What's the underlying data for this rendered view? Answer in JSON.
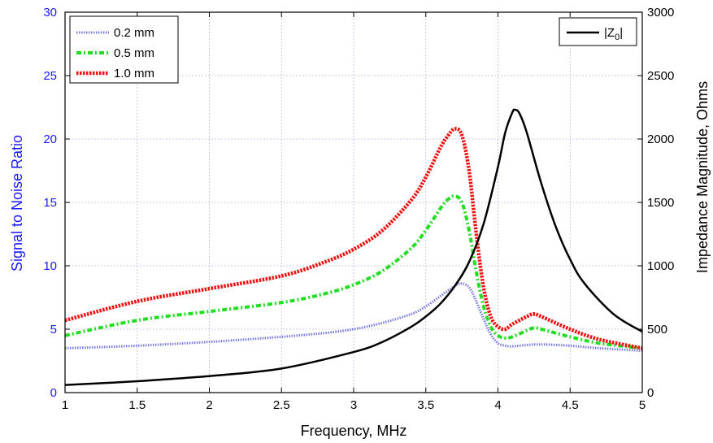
{
  "chart_data": {
    "type": "line",
    "xlabel": "Frequency, MHz",
    "ylabel_left": "Signal to Noise Ratio",
    "ylabel_right": "Impedance Magnitude, Ohms",
    "xlim": [
      1,
      5
    ],
    "ylim_left": [
      0,
      30
    ],
    "ylim_right": [
      0,
      3000
    ],
    "x_ticks": [
      "1",
      "1.5",
      "2",
      "2.5",
      "3",
      "3.5",
      "4",
      "4.5",
      "5"
    ],
    "y_ticks_left": [
      "0",
      "5",
      "10",
      "15",
      "20",
      "25",
      "30"
    ],
    "y_ticks_right": [
      "0",
      "500",
      "1000",
      "1500",
      "2000",
      "2500",
      "3000"
    ],
    "grid": true,
    "legend_left_position": "top-left",
    "legend_right_position": "top-right",
    "colors": {
      "left_axis": "#1a1aff",
      "right_axis": "#000000"
    },
    "series": [
      {
        "name": "0.2 mm",
        "axis": "left",
        "color": "#7b7bdc",
        "style": "dotted",
        "x": [
          1.0,
          1.5,
          2.0,
          2.5,
          2.8,
          3.0,
          3.2,
          3.4,
          3.5,
          3.6,
          3.7,
          3.75,
          3.8,
          3.85,
          3.9,
          3.95,
          4.0,
          4.05,
          4.1,
          4.2,
          4.3,
          4.5,
          4.7,
          5.0
        ],
        "y": [
          3.5,
          3.7,
          4.0,
          4.4,
          4.7,
          5.0,
          5.5,
          6.2,
          6.8,
          7.6,
          8.4,
          8.6,
          8.3,
          7.2,
          5.8,
          4.6,
          3.9,
          3.7,
          3.65,
          3.75,
          3.8,
          3.7,
          3.5,
          3.3
        ]
      },
      {
        "name": "0.5 mm",
        "axis": "left",
        "color": "#22dd22",
        "style": "dashdot",
        "x": [
          1.0,
          1.5,
          2.0,
          2.5,
          2.8,
          3.0,
          3.2,
          3.4,
          3.5,
          3.6,
          3.65,
          3.7,
          3.75,
          3.8,
          3.85,
          3.9,
          3.95,
          4.0,
          4.05,
          4.1,
          4.2,
          4.25,
          4.3,
          4.5,
          4.7,
          5.0
        ],
        "y": [
          4.5,
          5.7,
          6.4,
          7.1,
          7.8,
          8.5,
          9.6,
          11.4,
          12.8,
          14.5,
          15.2,
          15.5,
          15.0,
          12.8,
          9.5,
          6.8,
          5.2,
          4.5,
          4.3,
          4.4,
          4.9,
          5.1,
          5.0,
          4.4,
          3.9,
          3.5
        ]
      },
      {
        "name": "1.0 mm",
        "axis": "left",
        "color": "#ee1111",
        "style": "dotted",
        "x": [
          1.0,
          1.5,
          2.0,
          2.5,
          2.8,
          3.0,
          3.2,
          3.4,
          3.5,
          3.6,
          3.65,
          3.7,
          3.75,
          3.8,
          3.85,
          3.9,
          3.95,
          4.0,
          4.05,
          4.1,
          4.2,
          4.25,
          4.3,
          4.5,
          4.7,
          5.0
        ],
        "y": [
          5.7,
          7.2,
          8.2,
          9.2,
          10.3,
          11.3,
          12.8,
          15.2,
          17.0,
          19.3,
          20.2,
          20.8,
          20.3,
          17.5,
          12.5,
          8.3,
          6.0,
          5.2,
          5.0,
          5.4,
          6.0,
          6.2,
          6.0,
          5.0,
          4.2,
          3.5
        ]
      },
      {
        "name": "|Z0|",
        "axis": "right",
        "color": "#000000",
        "style": "solid",
        "x": [
          1.0,
          1.5,
          2.0,
          2.5,
          3.0,
          3.2,
          3.4,
          3.5,
          3.6,
          3.7,
          3.8,
          3.9,
          4.0,
          4.05,
          4.1,
          4.12,
          4.15,
          4.2,
          4.3,
          4.4,
          4.5,
          4.6,
          4.8,
          5.0
        ],
        "y": [
          60,
          90,
          130,
          190,
          320,
          400,
          520,
          600,
          700,
          840,
          1030,
          1330,
          1780,
          2050,
          2210,
          2230,
          2200,
          2050,
          1650,
          1310,
          1050,
          860,
          620,
          480
        ]
      }
    ]
  }
}
